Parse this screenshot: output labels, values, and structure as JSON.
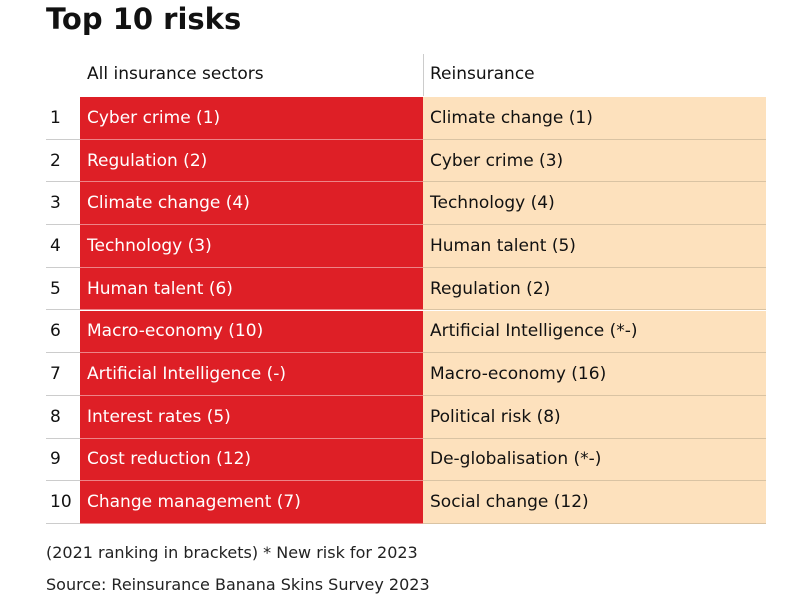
{
  "title": "Top 10 risks",
  "table": {
    "headers": [
      "All insurance sectors",
      "Reinsurance"
    ],
    "rows": [
      [
        "1",
        "Cyber crime (1)",
        "Climate change (1)"
      ],
      [
        "2",
        "Regulation (2)",
        "Cyber crime (3)"
      ],
      [
        "3",
        "Climate change (4)",
        "Technology (4)"
      ],
      [
        "4",
        "Technology (3)",
        "Human talent (5)"
      ],
      [
        "5",
        "Human talent (6)",
        "Regulation (2)"
      ],
      [
        "6",
        "Macro-economy (10)",
        "Artificial Intelligence (*-)"
      ],
      [
        "7",
        "Artificial Intelligence (-)",
        "Macro-economy (16)"
      ],
      [
        "8",
        "Interest rates (5)",
        "Political risk (8)"
      ],
      [
        "9",
        "Cost reduction (12)",
        "De-globalisation (*-)"
      ],
      [
        "10",
        "Change management (7)",
        "Social change (12)"
      ]
    ]
  },
  "notes": [
    "(2021 ranking in brackets) * New risk for 2023",
    "Source: Reinsurance Banana Skins Survey 2023"
  ]
}
